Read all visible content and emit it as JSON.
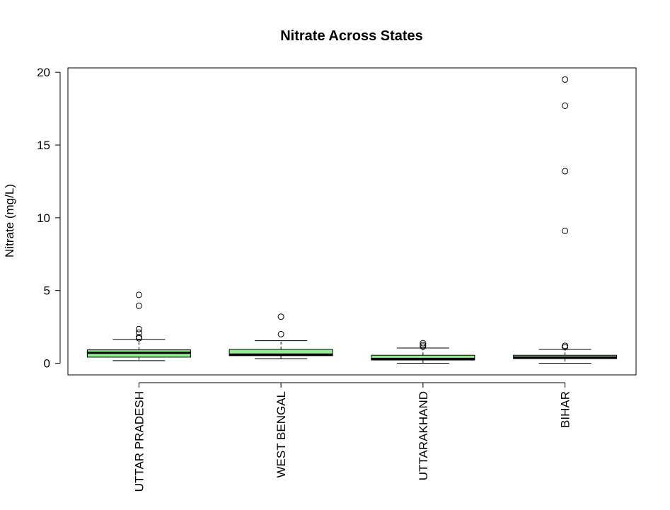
{
  "chart_data": {
    "type": "boxplot",
    "title": "Nitrate Across States",
    "xlabel": "",
    "ylabel": "Nitrate (mg/L)",
    "ylim": [
      -0.8,
      20.3
    ],
    "yticks": [
      0,
      5,
      10,
      15,
      20
    ],
    "categories": [
      "UTTAR PRADESH",
      "WEST BENGAL",
      "UTTARAKHAND",
      "BIHAR"
    ],
    "box_fill": "#90ee90",
    "boxes": [
      {
        "whisker_low": 0.18,
        "q1": 0.42,
        "median": 0.72,
        "q3": 0.92,
        "whisker_high": 1.65,
        "outliers": [
          1.72,
          1.8,
          2.1,
          2.35,
          3.95,
          4.7
        ]
      },
      {
        "whisker_low": 0.32,
        "q1": 0.52,
        "median": 0.6,
        "q3": 0.95,
        "whisker_high": 1.55,
        "outliers": [
          2.0,
          3.2
        ]
      },
      {
        "whisker_low": 0.0,
        "q1": 0.22,
        "median": 0.3,
        "q3": 0.55,
        "whisker_high": 1.05,
        "outliers": [
          1.15,
          1.25,
          1.38
        ]
      },
      {
        "whisker_low": 0.0,
        "q1": 0.32,
        "median": 0.4,
        "q3": 0.55,
        "whisker_high": 0.95,
        "outliers": [
          1.1,
          1.2,
          9.1,
          13.2,
          17.7,
          19.5
        ]
      }
    ]
  }
}
